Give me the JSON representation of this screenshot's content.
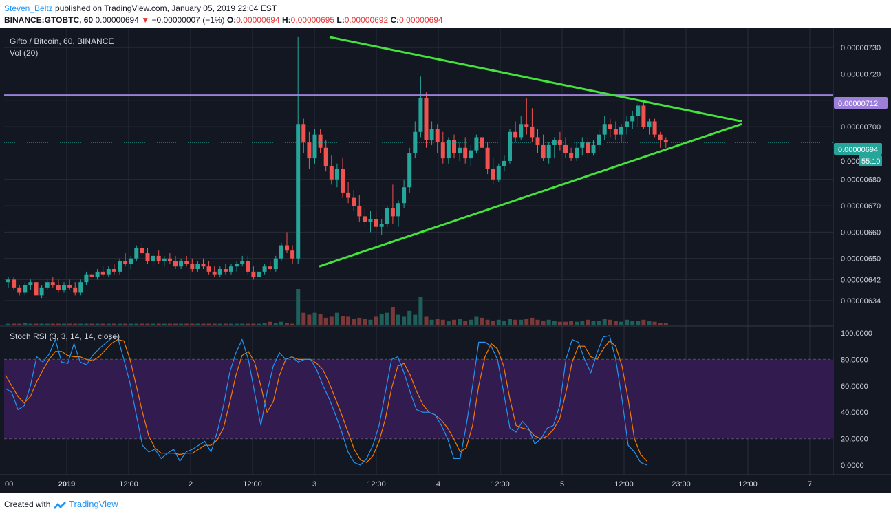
{
  "header": {
    "publisher": "Steven_Beltz",
    "published_text": " published on TradingView.com, January 05, 2019 22:04 EST",
    "symbol": "BINANCE:GTOBTC, 60",
    "last": "0.00000694",
    "change": "−0.00000007 (−1%)",
    "ohlc": [
      {
        "label": "O:",
        "value": "0.00000694"
      },
      {
        "label": "H:",
        "value": "0.00000695"
      },
      {
        "label": "L:",
        "value": "0.00000692"
      },
      {
        "label": "C:",
        "value": "0.00000694"
      }
    ]
  },
  "chart": {
    "title": "Gifto / Bitcoin, 60, BINANCE",
    "vol_label": "Vol (20)",
    "rsi_label": "Stoch RSI (3, 3, 14, 14, close)",
    "price_marker": "0.00000712",
    "last_marker": "0.00000694",
    "countdown": "55:10",
    "partial_label": "0.0000069"
  },
  "colors": {
    "background": "#131722",
    "grid": "#2a2e39",
    "up": "#26a69a",
    "down": "#ef5350",
    "triangle": "#43e33b",
    "resistance": "#9c7fd9",
    "rsi_k": "#2196f3",
    "rsi_d": "#f57c00",
    "rsi_band": "#311b4f"
  },
  "footer": {
    "created_with": "Created with",
    "brand": "TradingView"
  },
  "chart_data": {
    "type": "candlestick",
    "title": "Gifto / Bitcoin, 60, BINANCE",
    "price_axis": {
      "ticks": [
        "0.00000730",
        "0.00000720",
        "0.00000710",
        "0.00000700",
        "0.00000680",
        "0.00000670",
        "0.00000660",
        "0.00000650",
        "0.00000642",
        "0.00000634"
      ],
      "range": [
        6.28e-06,
        7.35e-06
      ]
    },
    "time_axis": {
      "ticks": [
        "00",
        "2019",
        "12:00",
        "2",
        "12:00",
        "3",
        "12:00",
        "4",
        "12:00",
        "5",
        "12:00",
        "23:00",
        "12:00",
        "7"
      ]
    },
    "candles": [
      [
        6.41,
        6.43,
        6.39,
        6.42
      ],
      [
        6.42,
        6.43,
        6.38,
        6.39
      ],
      [
        6.39,
        6.4,
        6.36,
        6.37
      ],
      [
        6.37,
        6.41,
        6.36,
        6.4
      ],
      [
        6.4,
        6.42,
        6.38,
        6.41
      ],
      [
        6.41,
        6.43,
        6.35,
        6.36
      ],
      [
        6.36,
        6.4,
        6.35,
        6.39
      ],
      [
        6.39,
        6.42,
        6.38,
        6.41
      ],
      [
        6.41,
        6.43,
        6.39,
        6.4
      ],
      [
        6.4,
        6.42,
        6.37,
        6.38
      ],
      [
        6.38,
        6.41,
        6.37,
        6.4
      ],
      [
        6.4,
        6.42,
        6.38,
        6.39
      ],
      [
        6.39,
        6.41,
        6.36,
        6.37
      ],
      [
        6.37,
        6.42,
        6.36,
        6.41
      ],
      [
        6.41,
        6.45,
        6.4,
        6.44
      ],
      [
        6.44,
        6.47,
        6.42,
        6.43
      ],
      [
        6.43,
        6.46,
        6.42,
        6.45
      ],
      [
        6.45,
        6.47,
        6.43,
        6.44
      ],
      [
        6.44,
        6.47,
        6.43,
        6.46
      ],
      [
        6.46,
        6.48,
        6.44,
        6.45
      ],
      [
        6.45,
        6.5,
        6.44,
        6.49
      ],
      [
        6.49,
        6.52,
        6.47,
        6.48
      ],
      [
        6.48,
        6.51,
        6.46,
        6.5
      ],
      [
        6.5,
        6.55,
        6.49,
        6.54
      ],
      [
        6.54,
        6.56,
        6.51,
        6.52
      ],
      [
        6.52,
        6.54,
        6.48,
        6.49
      ],
      [
        6.49,
        6.52,
        6.47,
        6.51
      ],
      [
        6.51,
        6.53,
        6.48,
        6.49
      ],
      [
        6.49,
        6.51,
        6.47,
        6.5
      ],
      [
        6.5,
        6.52,
        6.48,
        6.49
      ],
      [
        6.49,
        6.51,
        6.46,
        6.47
      ],
      [
        6.47,
        6.5,
        6.46,
        6.49
      ],
      [
        6.49,
        6.51,
        6.47,
        6.48
      ],
      [
        6.48,
        6.5,
        6.45,
        6.46
      ],
      [
        6.46,
        6.49,
        6.45,
        6.48
      ],
      [
        6.48,
        6.5,
        6.46,
        6.47
      ],
      [
        6.47,
        6.49,
        6.44,
        6.45
      ],
      [
        6.45,
        6.47,
        6.43,
        6.44
      ],
      [
        6.44,
        6.47,
        6.43,
        6.46
      ],
      [
        6.46,
        6.48,
        6.44,
        6.45
      ],
      [
        6.45,
        6.48,
        6.44,
        6.47
      ],
      [
        6.47,
        6.49,
        6.45,
        6.48
      ],
      [
        6.48,
        6.51,
        6.47,
        6.49
      ],
      [
        6.49,
        6.51,
        6.44,
        6.45
      ],
      [
        6.45,
        6.47,
        6.42,
        6.43
      ],
      [
        6.43,
        6.46,
        6.42,
        6.45
      ],
      [
        6.45,
        6.48,
        6.44,
        6.47
      ],
      [
        6.47,
        6.49,
        6.45,
        6.46
      ],
      [
        6.46,
        6.51,
        6.45,
        6.5
      ],
      [
        6.5,
        6.56,
        6.49,
        6.55
      ],
      [
        6.55,
        6.6,
        6.52,
        6.53
      ],
      [
        6.53,
        6.55,
        6.48,
        6.5
      ],
      [
        6.5,
        7.34,
        6.48,
        7.01
      ],
      [
        7.01,
        7.03,
        6.9,
        6.94
      ],
      [
        6.94,
        6.98,
        6.84,
        6.88
      ],
      [
        6.88,
        6.99,
        6.86,
        6.97
      ],
      [
        6.97,
        6.99,
        6.9,
        6.92
      ],
      [
        6.92,
        6.95,
        6.83,
        6.85
      ],
      [
        6.85,
        6.89,
        6.78,
        6.8
      ],
      [
        6.8,
        6.86,
        6.77,
        6.84
      ],
      [
        6.84,
        6.88,
        6.73,
        6.75
      ],
      [
        6.75,
        6.79,
        6.71,
        6.73
      ],
      [
        6.73,
        6.76,
        6.68,
        6.7
      ],
      [
        6.7,
        6.74,
        6.64,
        6.66
      ],
      [
        6.66,
        6.69,
        6.62,
        6.64
      ],
      [
        6.64,
        6.68,
        6.6,
        6.65
      ],
      [
        6.65,
        6.68,
        6.61,
        6.62
      ],
      [
        6.62,
        6.65,
        6.59,
        6.63
      ],
      [
        6.63,
        6.7,
        6.62,
        6.69
      ],
      [
        6.69,
        6.78,
        6.63,
        6.66
      ],
      [
        6.66,
        6.72,
        6.62,
        6.71
      ],
      [
        6.71,
        6.8,
        6.69,
        6.77
      ],
      [
        6.77,
        6.92,
        6.75,
        6.9
      ],
      [
        6.9,
        7.02,
        6.88,
        6.98
      ],
      [
        6.98,
        7.19,
        6.96,
        7.11
      ],
      [
        7.11,
        7.13,
        6.92,
        6.95
      ],
      [
        6.95,
        7.02,
        6.93,
        6.99
      ],
      [
        6.99,
        7.01,
        6.9,
        6.94
      ],
      [
        6.94,
        6.98,
        6.86,
        6.88
      ],
      [
        6.88,
        6.96,
        6.86,
        6.95
      ],
      [
        6.95,
        6.97,
        6.88,
        6.9
      ],
      [
        6.9,
        6.94,
        6.87,
        6.92
      ],
      [
        6.92,
        6.96,
        6.86,
        6.88
      ],
      [
        6.88,
        6.93,
        6.85,
        6.91
      ],
      [
        6.91,
        6.97,
        6.9,
        6.96
      ],
      [
        6.96,
        6.98,
        6.9,
        6.92
      ],
      [
        6.92,
        6.94,
        6.82,
        6.84
      ],
      [
        6.84,
        6.88,
        6.78,
        6.8
      ],
      [
        6.8,
        6.86,
        6.79,
        6.85
      ],
      [
        6.85,
        6.89,
        6.83,
        6.87
      ],
      [
        6.87,
        6.99,
        6.86,
        6.98
      ],
      [
        6.98,
        7.02,
        6.94,
        6.96
      ],
      [
        6.96,
        7.04,
        6.95,
        7.01
      ],
      [
        7.01,
        7.11,
        6.97,
        7.0
      ],
      [
        7.0,
        7.07,
        6.94,
        6.96
      ],
      [
        6.96,
        6.99,
        6.9,
        6.93
      ],
      [
        6.93,
        6.97,
        6.87,
        6.88
      ],
      [
        6.88,
        6.94,
        6.86,
        6.93
      ],
      [
        6.93,
        6.96,
        6.88,
        6.95
      ],
      [
        6.95,
        6.98,
        6.91,
        6.93
      ],
      [
        6.93,
        6.96,
        6.88,
        6.9
      ],
      [
        6.9,
        6.92,
        6.87,
        6.88
      ],
      [
        6.88,
        6.94,
        6.87,
        6.92
      ],
      [
        6.92,
        6.96,
        6.89,
        6.94
      ],
      [
        6.94,
        6.96,
        6.88,
        6.9
      ],
      [
        6.9,
        6.95,
        6.89,
        6.93
      ],
      [
        6.93,
        6.99,
        6.91,
        6.97
      ],
      [
        6.97,
        7.04,
        6.95,
        7.01
      ],
      [
        7.01,
        7.03,
        6.96,
        6.99
      ],
      [
        6.99,
        7.02,
        6.95,
        6.97
      ],
      [
        6.97,
        7.01,
        6.94,
        7.0
      ],
      [
        7.0,
        7.04,
        6.97,
        7.02
      ],
      [
        7.02,
        7.06,
        6.99,
        7.04
      ],
      [
        7.04,
        7.09,
        7.0,
        7.08
      ],
      [
        7.08,
        7.1,
        6.99,
        7.0
      ],
      [
        7.0,
        7.03,
        6.97,
        7.02
      ],
      [
        7.02,
        7.03,
        6.96,
        6.97
      ],
      [
        6.97,
        6.98,
        6.92,
        6.95
      ],
      [
        6.95,
        6.96,
        6.92,
        6.94
      ]
    ],
    "volume": [
      1,
      1,
      1,
      2,
      1,
      1,
      1,
      1,
      1,
      1,
      1,
      1,
      1,
      1,
      1,
      1,
      1,
      1,
      1,
      1,
      1,
      1,
      1,
      1,
      1,
      1,
      1,
      1,
      1,
      1,
      1,
      1,
      1,
      1,
      1,
      1,
      1,
      1,
      1,
      1,
      1,
      1,
      1,
      1,
      1,
      1,
      2,
      3,
      2,
      3,
      2,
      1,
      36,
      12,
      10,
      12,
      11,
      7,
      8,
      12,
      9,
      8,
      6,
      7,
      6,
      5,
      8,
      11,
      12,
      18,
      10,
      8,
      14,
      10,
      28,
      8,
      5,
      6,
      5,
      4,
      5,
      6,
      4,
      5,
      8,
      7,
      5,
      4,
      5,
      4,
      6,
      5,
      5,
      6,
      7,
      5,
      4,
      5,
      4,
      3,
      3,
      4,
      3,
      4,
      5,
      4,
      4,
      6,
      5,
      4,
      3,
      5,
      4,
      4,
      5,
      4,
      3,
      2,
      2
    ],
    "stoch_rsi": {
      "range": [
        0,
        100
      ],
      "levels": [
        20,
        80
      ],
      "ticks": [
        "100.0000",
        "80.0000",
        "60.0000",
        "40.0000",
        "20.0000",
        "0.0000"
      ],
      "k": [
        58,
        55,
        42,
        45,
        60,
        82,
        78,
        84,
        95,
        78,
        77,
        92,
        78,
        76,
        83,
        88,
        92,
        96,
        97,
        80,
        62,
        38,
        15,
        10,
        12,
        5,
        9,
        12,
        3,
        10,
        12,
        15,
        18,
        10,
        25,
        45,
        70,
        85,
        95,
        80,
        55,
        30,
        55,
        75,
        85,
        80,
        82,
        78,
        80,
        80,
        72,
        60,
        50,
        38,
        25,
        10,
        2,
        0,
        5,
        15,
        30,
        55,
        80,
        82,
        70,
        55,
        42,
        40,
        40,
        38,
        30,
        20,
        5,
        5,
        30,
        60,
        93,
        93,
        90,
        80,
        55,
        28,
        25,
        33,
        28,
        16,
        20,
        28,
        30,
        45,
        80,
        95,
        93,
        80,
        70,
        85,
        97,
        98,
        80,
        50,
        15,
        10,
        2,
        0
      ],
      "d": [
        68,
        60,
        52,
        47,
        52,
        63,
        72,
        80,
        86,
        86,
        83,
        82,
        82,
        80,
        79,
        82,
        87,
        92,
        95,
        94,
        80,
        60,
        40,
        22,
        13,
        9,
        9,
        9,
        8,
        9,
        9,
        12,
        15,
        15,
        19,
        28,
        47,
        68,
        83,
        86,
        78,
        60,
        40,
        48,
        68,
        80,
        82,
        80,
        80,
        80,
        77,
        72,
        62,
        50,
        38,
        25,
        12,
        4,
        2,
        7,
        18,
        35,
        58,
        75,
        77,
        68,
        56,
        46,
        40,
        38,
        34,
        28,
        20,
        10,
        13,
        30,
        60,
        82,
        92,
        88,
        75,
        50,
        30,
        28,
        27,
        22,
        20,
        22,
        27,
        35,
        55,
        78,
        90,
        90,
        82,
        80,
        88,
        94,
        90,
        75,
        50,
        20,
        8,
        3
      ]
    },
    "annotations": {
      "resistance_price": 7.12e-06,
      "current_price": 6.94e-06,
      "triangle_upper": [
        [
          7.34e-06
        ],
        [
          7.02e-06
        ]
      ],
      "triangle_lower": [
        [
          6.47e-06
        ],
        [
          7.01e-06
        ]
      ]
    }
  }
}
